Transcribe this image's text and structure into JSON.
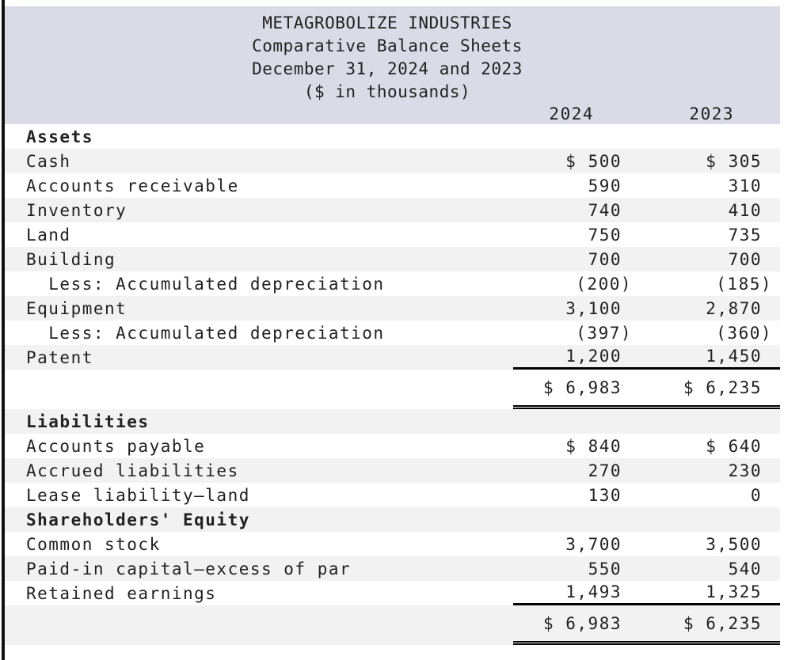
{
  "document": {
    "company": "METAGROBOLIZE INDUSTRIES",
    "statement": "Comparative Balance Sheets",
    "period": "December 31, 2024 and 2023",
    "units": "($ in thousands)"
  },
  "columns": [
    "2024",
    "2023"
  ],
  "rows": [
    {
      "label": "Assets",
      "v2024": "",
      "v2023": "",
      "bold": true
    },
    {
      "label": "Cash",
      "v2024": "$ 500",
      "v2023": "$ 305"
    },
    {
      "label": "Accounts receivable",
      "v2024": "590",
      "v2023": "310"
    },
    {
      "label": "Inventory",
      "v2024": "740",
      "v2023": "410"
    },
    {
      "label": "Land",
      "v2024": "750",
      "v2023": "735"
    },
    {
      "label": "Building",
      "v2024": "700",
      "v2023": "700"
    },
    {
      "label": "  Less: Accumulated depreciation",
      "v2024": "(200)",
      "v2023": "(185)"
    },
    {
      "label": "Equipment",
      "v2024": "3,100",
      "v2023": "2,870"
    },
    {
      "label": "  Less: Accumulated depreciation",
      "v2024": "(397)",
      "v2023": "(360)"
    },
    {
      "label": "Patent",
      "v2024": "1,200",
      "v2023": "1,450",
      "rule": "single"
    },
    {
      "label": "",
      "v2024": "$ 6,983",
      "v2023": "$ 6,235",
      "total": true,
      "rule": "double"
    },
    {
      "label": "Liabilities",
      "v2024": "",
      "v2023": "",
      "bold": true
    },
    {
      "label": "Accounts payable",
      "v2024": "$ 840",
      "v2023": "$ 640"
    },
    {
      "label": "Accrued liabilities",
      "v2024": "270",
      "v2023": "230"
    },
    {
      "label": "Lease liability—land",
      "v2024": "130",
      "v2023": "0"
    },
    {
      "label": "Shareholders' Equity",
      "v2024": "",
      "v2023": "",
      "bold": true
    },
    {
      "label": "Common stock",
      "v2024": "3,700",
      "v2023": "3,500"
    },
    {
      "label": "Paid-in capital—excess of par",
      "v2024": "550",
      "v2023": "540"
    },
    {
      "label": "Retained earnings",
      "v2024": "1,493",
      "v2023": "1,325",
      "rule": "single"
    },
    {
      "label": "",
      "v2024": "$ 6,983",
      "v2023": "$ 6,235",
      "total": true,
      "rule": "double"
    }
  ],
  "colors": {
    "header_bg": "#d9dce6",
    "stripe": "#f2f2f2",
    "text": "#212121",
    "rule": "#000000",
    "left_border": "#111111"
  }
}
